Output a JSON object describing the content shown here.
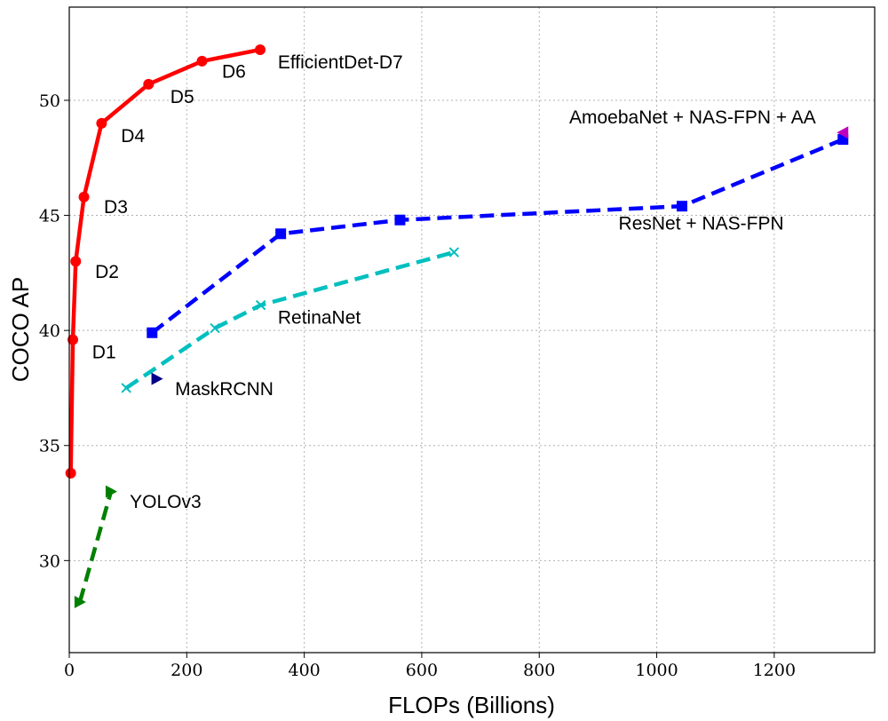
{
  "chart_data": {
    "type": "line",
    "xlabel": "FLOPs (Billions)",
    "ylabel": "COCO AP",
    "xlim": [
      0,
      1371
    ],
    "ylim": [
      26,
      54.05
    ],
    "xticks": [
      0,
      200,
      400,
      600,
      800,
      1000,
      1200
    ],
    "yticks": [
      30,
      35,
      40,
      45,
      50
    ],
    "grid": true,
    "series": [
      {
        "name": "EfficientDet",
        "color": "#ff0000",
        "marker": "circle",
        "dashed": false,
        "x": [
          2.5,
          6.1,
          11,
          25,
          55,
          135,
          226,
          325
        ],
        "y": [
          33.8,
          39.6,
          43.0,
          45.8,
          49.0,
          50.7,
          51.7,
          52.2
        ]
      },
      {
        "name": "ResNet + NAS-FPN",
        "color": "#0000ff",
        "marker": "square",
        "dashed": true,
        "x": [
          141,
          360,
          563,
          1043,
          1317
        ],
        "y": [
          39.9,
          44.2,
          44.8,
          45.4,
          48.3
        ]
      },
      {
        "name": "RetinaNet",
        "color": "#00bfbf",
        "marker": "x",
        "dashed": true,
        "x": [
          97,
          248,
          326,
          655
        ],
        "y": [
          37.5,
          40.1,
          41.1,
          43.4
        ]
      },
      {
        "name": "MaskRCNN",
        "color": "#00008b",
        "marker": "triangle-right",
        "dashed": false,
        "x": [
          149
        ],
        "y": [
          37.9
        ]
      },
      {
        "name": "YOLOv3",
        "color": "#008000",
        "marker": "triangle-right",
        "dashed": true,
        "x": [
          18,
          71
        ],
        "y": [
          28.2,
          33.0
        ]
      },
      {
        "name": "AmoebaNet + NAS-FPN + AA",
        "color": "#bf00bf",
        "marker": "triangle-left",
        "dashed": false,
        "x": [
          1317
        ],
        "y": [
          48.6
        ]
      }
    ],
    "annotations": [
      {
        "text": "D1",
        "x": 39,
        "y": 39.1
      },
      {
        "text": "D2",
        "x": 44,
        "y": 42.6
      },
      {
        "text": "D3",
        "x": 59,
        "y": 45.4
      },
      {
        "text": "D4",
        "x": 88,
        "y": 48.5
      },
      {
        "text": "D5",
        "x": 172,
        "y": 50.2
      },
      {
        "text": "D6",
        "x": 260,
        "y": 51.3
      },
      {
        "text": "EfficientDet-D7",
        "x": 355,
        "y": 51.7
      },
      {
        "text": "AmoebaNet + NAS-FPN + AA",
        "x": 851,
        "y": 49.3
      },
      {
        "text": "ResNet + NAS-FPN",
        "x": 935,
        "y": 44.7
      },
      {
        "text": "RetinaNet",
        "x": 355,
        "y": 40.6
      },
      {
        "text": "MaskRCNN",
        "x": 180,
        "y": 37.5
      },
      {
        "text": "YOLOv3",
        "x": 103,
        "y": 32.6
      }
    ]
  }
}
